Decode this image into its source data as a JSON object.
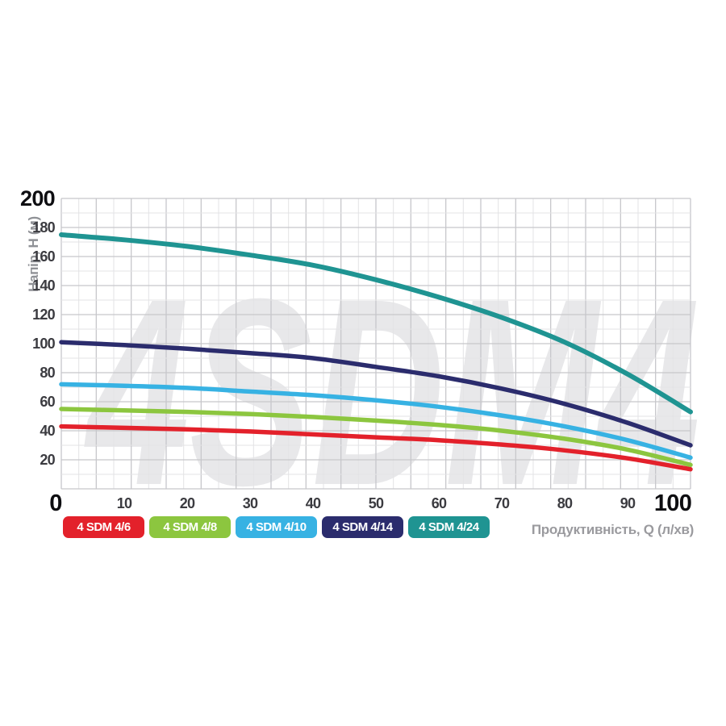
{
  "axes": {
    "y_label": "Напір, H (м)",
    "x_label": "Продуктивність, Q (л/хв)"
  },
  "watermark": {
    "text": "4SDM4",
    "color": "#e8e8ea"
  },
  "grid_colors": {
    "minor": "#e3e3e5",
    "major": "#c7c7cb"
  },
  "chart_data": {
    "type": "line",
    "title": "",
    "xlabel": "Продуктивність, Q (л/хв)",
    "ylabel": "Напір, H (м)",
    "xlim": [
      0,
      100
    ],
    "ylim": [
      0,
      200
    ],
    "x_ticks": [
      0,
      10,
      20,
      30,
      40,
      50,
      60,
      70,
      80,
      90,
      100
    ],
    "y_ticks": [
      20,
      40,
      60,
      80,
      100,
      120,
      140,
      160,
      180,
      200
    ],
    "emphasized_x_ticks": [
      0,
      100
    ],
    "emphasized_y_ticks": [
      200
    ],
    "grid": true,
    "legend_position": "bottom",
    "series": [
      {
        "name": "4 SDM 4/6",
        "color": "#e3212b",
        "points": [
          [
            0,
            43
          ],
          [
            10,
            42
          ],
          [
            20,
            41
          ],
          [
            30,
            39.5
          ],
          [
            40,
            37.5
          ],
          [
            50,
            35.5
          ],
          [
            60,
            33.5
          ],
          [
            70,
            30.5
          ],
          [
            80,
            26.5
          ],
          [
            90,
            21
          ],
          [
            100,
            13.5
          ]
        ]
      },
      {
        "name": "4 SDM 4/8",
        "color": "#8cc63f",
        "points": [
          [
            0,
            55
          ],
          [
            10,
            54
          ],
          [
            20,
            53
          ],
          [
            30,
            51.5
          ],
          [
            40,
            49.5
          ],
          [
            50,
            47
          ],
          [
            60,
            44
          ],
          [
            70,
            40
          ],
          [
            80,
            34.5
          ],
          [
            90,
            27
          ],
          [
            100,
            16.5
          ]
        ]
      },
      {
        "name": "4 SDM 4/10",
        "color": "#37b2e3",
        "points": [
          [
            0,
            72
          ],
          [
            10,
            71
          ],
          [
            20,
            69.5
          ],
          [
            30,
            67
          ],
          [
            40,
            64.5
          ],
          [
            50,
            61
          ],
          [
            60,
            56.5
          ],
          [
            70,
            50.5
          ],
          [
            80,
            43
          ],
          [
            90,
            33.5
          ],
          [
            100,
            21.5
          ]
        ]
      },
      {
        "name": "4 SDM 4/14",
        "color": "#2b2c6d",
        "points": [
          [
            0,
            101
          ],
          [
            10,
            99
          ],
          [
            20,
            96.5
          ],
          [
            30,
            93.5
          ],
          [
            40,
            90
          ],
          [
            50,
            84
          ],
          [
            60,
            77.5
          ],
          [
            70,
            69
          ],
          [
            80,
            58.5
          ],
          [
            90,
            45.5
          ],
          [
            100,
            30
          ]
        ]
      },
      {
        "name": "4 SDM 4/24",
        "color": "#1f9492",
        "points": [
          [
            0,
            175
          ],
          [
            10,
            171.5
          ],
          [
            20,
            167
          ],
          [
            30,
            161
          ],
          [
            40,
            154
          ],
          [
            50,
            144
          ],
          [
            60,
            132
          ],
          [
            70,
            118
          ],
          [
            80,
            101
          ],
          [
            90,
            79
          ],
          [
            100,
            53
          ]
        ]
      }
    ]
  }
}
